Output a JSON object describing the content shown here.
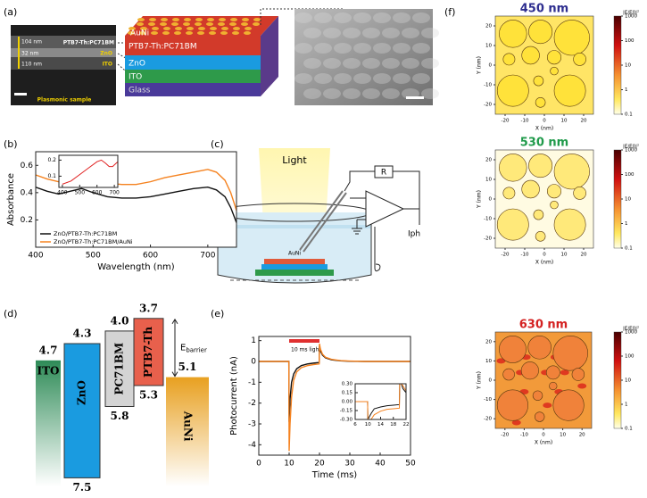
{
  "panels": [
    "(a)",
    "(b)",
    "(c)",
    "(d)",
    "(e)",
    "(f)"
  ],
  "sem_cross_section": {
    "thicknesses": [
      "104 nm",
      "32 nm",
      "110 nm"
    ],
    "layers": [
      "PTB7-Th:PC71BM",
      "ZnO",
      "ITO"
    ],
    "caption": "Plasmonic sample"
  },
  "device_stack": [
    "AuNi",
    "PTB7-Th:PC71BM",
    "ZnO",
    "ITO",
    "Glass"
  ],
  "setup": {
    "light": "Light",
    "resistor": "R",
    "current": "Iph",
    "sample": "AuNi"
  },
  "energy_diagram": {
    "materials": [
      {
        "name": "ITO",
        "top": 4.7
      },
      {
        "name": "ZnO",
        "top": 4.3,
        "bottom": 7.5
      },
      {
        "name": "PC71BM",
        "top": {
          "value": 4,
          "label": "4.0"
        },
        "bottom": 5.8
      },
      {
        "name": "PTB7-Th",
        "top": 3.7,
        "bottom": 5.3
      },
      {
        "name": "AuNi",
        "top": 5.1
      }
    ],
    "barrier": {
      "symbol": "E",
      "subscript": "barrier"
    }
  },
  "chart_data": [
    {
      "type": "line",
      "x": [
        400,
        420,
        440,
        460,
        480,
        500,
        525,
        550,
        575,
        600,
        625,
        650,
        675,
        700,
        715,
        730,
        740,
        750
      ],
      "series": [
        {
          "name": "ZnO/PTB7-Th:PC71BM",
          "color": "#111111",
          "values": [
            0.44,
            0.41,
            0.39,
            0.41,
            0.43,
            0.4,
            0.37,
            0.36,
            0.36,
            0.37,
            0.39,
            0.41,
            0.43,
            0.44,
            0.42,
            0.37,
            0.29,
            0.18
          ]
        },
        {
          "name": "ZnO/PTB7-Th:PC71BM/AuNi",
          "color": "#f5821f",
          "values": [
            0.53,
            0.5,
            0.48,
            0.5,
            0.53,
            0.5,
            0.47,
            0.46,
            0.46,
            0.48,
            0.51,
            0.53,
            0.55,
            0.57,
            0.55,
            0.49,
            0.4,
            0.27
          ]
        }
      ],
      "xlabel": "Wavelength (nm)",
      "ylabel": "Absorbance",
      "xlim": [
        400,
        750
      ],
      "ylim": [
        0,
        0.7
      ],
      "xticks": [
        400,
        500,
        600,
        700
      ],
      "yticks": [
        0.2,
        0.4,
        0.6
      ],
      "legend": "lower left"
    },
    {
      "type": "line",
      "x": [
        400,
        450,
        500,
        550,
        600,
        625,
        650,
        670,
        690,
        710,
        720
      ],
      "values": [
        0.05,
        0.07,
        0.11,
        0.15,
        0.19,
        0.2,
        0.18,
        0.16,
        0.16,
        0.18,
        0.19
      ],
      "color": "#e02020",
      "xlim": [
        380,
        720
      ],
      "ylim": [
        0.03,
        0.23
      ],
      "xticks": [
        400,
        500,
        600,
        700
      ],
      "yticks": [
        0.1,
        0.2
      ]
    },
    {
      "type": "line",
      "x": [
        0,
        9.9,
        10,
        10.3,
        10.8,
        11.5,
        12.5,
        14,
        16,
        18,
        19.9,
        20,
        20.3,
        21,
        22,
        24,
        27,
        30,
        35,
        40,
        45,
        50
      ],
      "series": [
        {
          "color": "#111111",
          "values": [
            0,
            0,
            -2.9,
            -1.8,
            -1.0,
            -0.6,
            -0.35,
            -0.2,
            -0.12,
            -0.08,
            -0.05,
            0.75,
            0.5,
            0.3,
            0.17,
            0.08,
            0.03,
            0.01,
            0,
            0,
            0,
            0
          ]
        },
        {
          "color": "#f5821f",
          "values": [
            0,
            0,
            -4.3,
            -3.0,
            -1.7,
            -0.9,
            -0.5,
            -0.3,
            -0.2,
            -0.15,
            -0.12,
            0.85,
            0.6,
            0.35,
            0.2,
            0.1,
            0.04,
            0.02,
            0,
            0,
            0,
            0
          ]
        }
      ],
      "xlabel": "Time (ms)",
      "ylabel": "Photocurrent (nA)",
      "annotation": "10 ms light",
      "light_on": [
        10,
        20
      ],
      "xlim": [
        0,
        50
      ],
      "ylim": [
        -4.5,
        1.2
      ],
      "xticks": [
        0,
        10,
        20,
        30,
        40,
        50
      ],
      "yticks": [
        -4,
        -3,
        -2,
        -1,
        0,
        1
      ]
    },
    {
      "type": "line",
      "x": [
        6,
        9.9,
        10,
        11,
        12,
        14,
        16,
        18,
        19.9,
        20,
        20.5,
        21,
        22
      ],
      "series": [
        {
          "color": "#111111",
          "values": [
            0,
            0,
            -0.3,
            -0.2,
            -0.12,
            -0.09,
            -0.07,
            -0.06,
            -0.05,
            0.3,
            0.3,
            0.22,
            0.15
          ]
        },
        {
          "color": "#f5821f",
          "values": [
            0,
            0,
            -0.3,
            -0.3,
            -0.22,
            -0.16,
            -0.13,
            -0.12,
            -0.11,
            0.3,
            0.3,
            0.27,
            0.18
          ]
        }
      ],
      "xlim": [
        6,
        22
      ],
      "ylim": [
        -0.3,
        0.3
      ],
      "xticks": [
        6,
        10,
        14,
        18,
        22
      ],
      "yticks": [
        {
          "value": 0.3,
          "label": "0.30"
        },
        {
          "value": 0.15,
          "label": "0.15"
        },
        {
          "value": 0,
          "label": "0.00"
        },
        {
          "value": -0.15,
          "label": "-0.15"
        },
        {
          "value": -0.3,
          "label": "-0.30"
        }
      ]
    },
    {
      "type": "field_map",
      "title": "450 nm",
      "title_color": "#2e2e8f",
      "background": "#ffe566",
      "particle_color": "#ffe23a",
      "xlabel": "X (nm)",
      "ylabel": "Y (nm)",
      "xlim": [
        -25,
        25
      ],
      "ylim": [
        -25,
        25
      ],
      "xticks": [
        -20,
        -10,
        0,
        10,
        20
      ],
      "yticks": [
        -20,
        -10,
        0,
        10,
        20
      ],
      "colorbar_label": "|E/E0|²",
      "colorbar_log": true,
      "colorbar_lim": [
        0.1,
        1000
      ],
      "colorbar_ticks": [
        1000,
        100,
        10,
        1,
        0.1
      ]
    },
    {
      "type": "field_map",
      "title": "530 nm",
      "title_color": "#1f9a4a",
      "background": "#fffbe2",
      "particle_color": "#ffe97a",
      "xlabel": "X (nm)",
      "ylabel": "Y (nm)",
      "xlim": [
        -25,
        25
      ],
      "ylim": [
        -25,
        25
      ],
      "xticks": [
        -20,
        -10,
        0,
        10,
        20
      ],
      "yticks": [
        -20,
        -10,
        0,
        10,
        20
      ],
      "colorbar_label": "|E/E0|²",
      "colorbar_log": true,
      "colorbar_lim": [
        0.1,
        1000
      ],
      "colorbar_ticks": [
        1000,
        100,
        10,
        1,
        0.1
      ]
    },
    {
      "type": "field_map",
      "title": "630 nm",
      "title_color": "#d42020",
      "background": "#f29a3a",
      "particle_color": "#f0823a",
      "xlabel": "X (nm)",
      "ylabel": "Y (nm)",
      "xlim": [
        -25,
        25
      ],
      "ylim": [
        -25,
        25
      ],
      "xticks": [
        -20,
        -10,
        0,
        10,
        20
      ],
      "yticks": [
        -20,
        -10,
        0,
        10,
        20
      ],
      "colorbar_label": "|E/E0|²",
      "colorbar_log": true,
      "colorbar_lim": [
        0.1,
        1000
      ],
      "colorbar_ticks": [
        1000,
        100,
        10,
        1,
        0.1
      ]
    }
  ]
}
